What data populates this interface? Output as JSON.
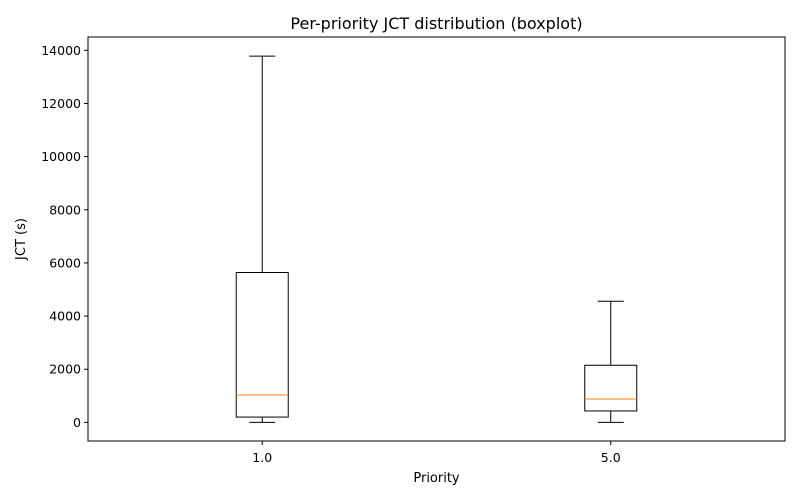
{
  "chart_data": {
    "type": "box",
    "title": "Per-priority JCT distribution (boxplot)",
    "xlabel": "Priority",
    "ylabel": "JCT (s)",
    "ylim": [
      -700,
      14500
    ],
    "yticks": [
      0,
      2000,
      4000,
      6000,
      8000,
      10000,
      12000,
      14000
    ],
    "categories": [
      "1.0",
      "5.0"
    ],
    "boxes": [
      {
        "category": "1.0",
        "whisker_low": 0,
        "q1": 200,
        "median": 1030,
        "q3": 5640,
        "whisker_high": 13780
      },
      {
        "category": "5.0",
        "whisker_low": 0,
        "q1": 430,
        "median": 880,
        "q3": 2150,
        "whisker_high": 4560
      }
    ],
    "colors": {
      "box": "#000000",
      "median": "#ff7f0e"
    },
    "grid": false,
    "legend": false
  }
}
